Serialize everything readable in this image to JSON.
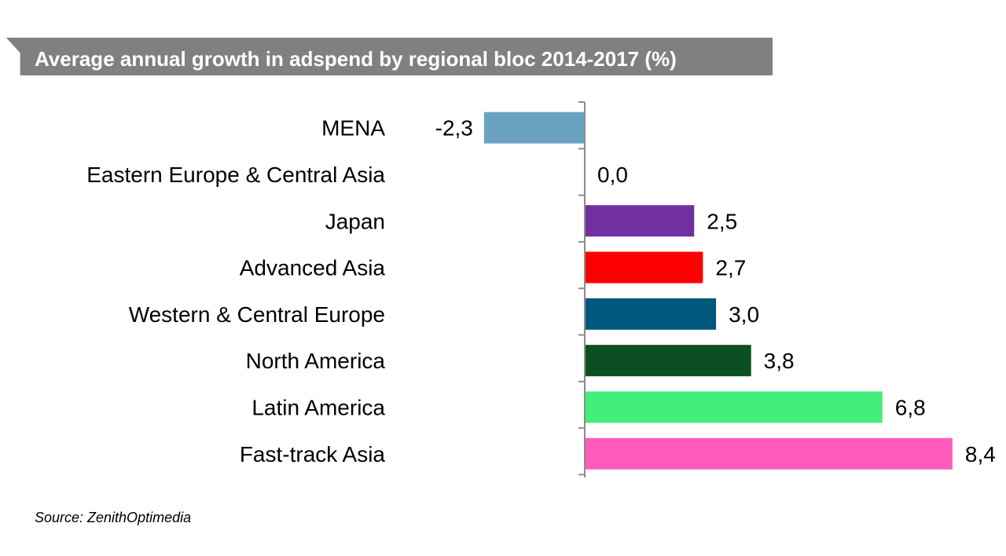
{
  "chart_data": {
    "type": "bar",
    "orientation": "horizontal",
    "title": "Average annual growth in adspend by regional bloc 2014-2017 (%)",
    "categories": [
      "MENA",
      "Eastern Europe & Central Asia",
      "Japan",
      "Advanced Asia",
      "Western & Central Europe",
      "North America",
      "Latin America",
      "Fast-track Asia"
    ],
    "values": [
      -2.3,
      0.0,
      2.5,
      2.7,
      3.0,
      3.8,
      6.8,
      8.4
    ],
    "value_labels": [
      "-2,3",
      "0,0",
      "2,5",
      "2,7",
      "3,0",
      "3,8",
      "6,8",
      "8,4"
    ],
    "colors": [
      "#6aa3c0",
      "#7fa8c0",
      "#7030a0",
      "#ff0000",
      "#00587c",
      "#0b4f23",
      "#44ee7a",
      "#ff5bbd"
    ],
    "xlim": [
      -2.3,
      8.4
    ],
    "grid": false,
    "legend": "none"
  },
  "source": "Source: ZenithOptimedia"
}
